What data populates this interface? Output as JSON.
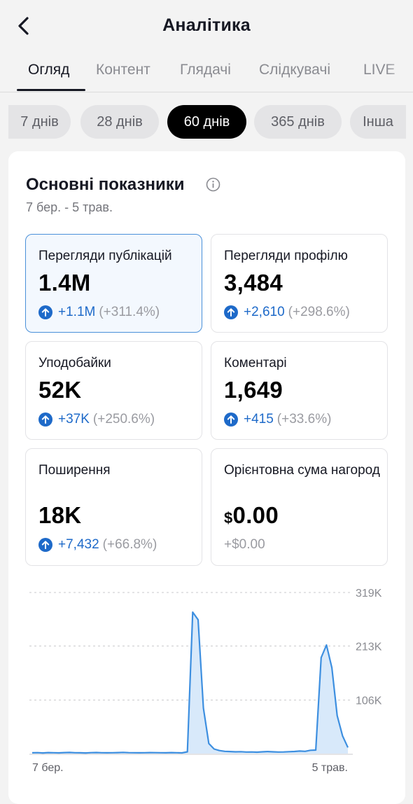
{
  "header": {
    "title": "Аналітика"
  },
  "tabs": [
    {
      "label": "Огляд",
      "active": true
    },
    {
      "label": "Контент",
      "active": false
    },
    {
      "label": "Глядачі",
      "active": false
    },
    {
      "label": "Слідкувачі",
      "active": false
    },
    {
      "label": "LIVE",
      "active": false
    }
  ],
  "ranges": [
    {
      "label": "7 днів",
      "active": false
    },
    {
      "label": "28 днів",
      "active": false
    },
    {
      "label": "60 днів",
      "active": true
    },
    {
      "label": "365 днів",
      "active": false
    },
    {
      "label": "Інша",
      "active": false
    }
  ],
  "overview": {
    "title": "Основні показники",
    "date_range": "7 бер. - 5 трав."
  },
  "metrics": [
    {
      "label": "Перегляди публікацій",
      "value": "1.4M",
      "delta": "+1.1M",
      "pct": "(+311.4%)",
      "selected": true
    },
    {
      "label": "Перегляди профілю",
      "value": "3,484",
      "delta": "+2,610",
      "pct": "(+298.6%)",
      "selected": false
    },
    {
      "label": "Уподобайки",
      "value": "52K",
      "delta": "+37K",
      "pct": "(+250.6%)",
      "selected": false
    },
    {
      "label": "Коментарі",
      "value": "1,649",
      "delta": "+415",
      "pct": "(+33.6%)",
      "selected": false
    },
    {
      "label": "Поширення",
      "value": "18K",
      "delta": "+7,432",
      "pct": "(+66.8%)",
      "selected": false
    },
    {
      "label": "Орієнтовна сума нагород",
      "currency": "$",
      "value": "0.00",
      "delta": "+$0.00",
      "selected": false
    }
  ],
  "colors": {
    "accent": "#1e6ac9",
    "selected_border": "#4a90d9",
    "line": "#3d8fe0",
    "fill": "#d8e9fa",
    "active_chip": "#000000"
  },
  "chart_data": {
    "type": "area",
    "y_ticks": [
      "319K",
      "213K",
      "106K"
    ],
    "ylim": [
      0,
      319000
    ],
    "x_labels": [
      "7 бер.",
      "5 трав."
    ],
    "grid": true,
    "series": [
      {
        "values": [
          1500,
          1800,
          1200,
          2000,
          1600,
          1400,
          1900,
          2200,
          1700,
          1500,
          1300,
          1800,
          2100,
          1600,
          1500,
          1700,
          1900,
          2300,
          1800,
          1600,
          1500,
          1700,
          2000,
          1800,
          1600,
          1500,
          1900,
          1700,
          1400,
          3500,
          280000,
          265000,
          90000,
          20000,
          9000,
          6000,
          4500,
          4000,
          3500,
          3800,
          3000,
          3200,
          2800,
          3500,
          4000,
          3500,
          3000,
          3200,
          3800,
          4200,
          5000,
          4500,
          6500,
          7000,
          190000,
          215000,
          170000,
          75000,
          35000,
          12000
        ]
      }
    ]
  }
}
